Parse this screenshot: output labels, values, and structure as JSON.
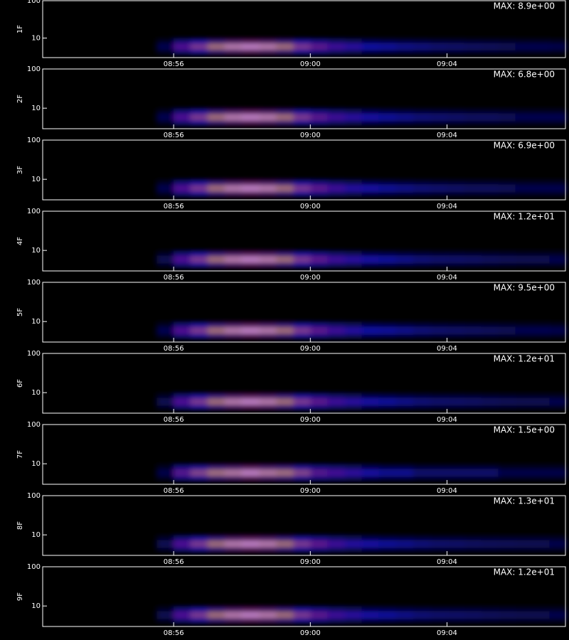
{
  "chart_data": [
    {
      "type": "heatmap",
      "ylabel": "1F",
      "annotation": "MAX: 8.9e+00",
      "log_y": true,
      "ylim": [
        3,
        100
      ],
      "yticks": [
        10,
        100
      ],
      "xlim": [
        "08:52:10",
        "09:07:28"
      ],
      "xticks": [
        "08:56",
        "09:00",
        "09:04"
      ],
      "x": [
        "08:55:30",
        "08:56:00",
        "08:56:30",
        "08:57:00",
        "08:57:30",
        "08:58:00",
        "08:58:30",
        "08:59:00",
        "08:59:30",
        "09:00:00",
        "09:00:30",
        "09:01:00",
        "09:01:30",
        "09:02:00",
        "09:02:30",
        "09:03:00",
        "09:03:30",
        "09:04:00",
        "09:04:30",
        "09:05:00",
        "09:05:30",
        "09:06:00",
        "09:06:30",
        "09:07:00"
      ],
      "values": [
        1.3,
        4.5,
        6.2,
        7.6,
        8.5,
        8.9,
        8.5,
        7.6,
        6.2,
        4.9,
        4,
        3.4,
        2.8,
        2.5,
        2.2,
        2,
        1.8,
        1.7,
        1.6,
        1.5,
        1.4,
        1.3,
        1.3,
        1.2
      ]
    },
    {
      "type": "heatmap",
      "ylabel": "2F",
      "annotation": "MAX: 6.8e+00",
      "log_y": true,
      "ylim": [
        3,
        100
      ],
      "yticks": [
        10,
        100
      ],
      "xlim": [
        "08:52:10",
        "09:07:28"
      ],
      "xticks": [
        "08:56",
        "09:00",
        "09:04"
      ],
      "x": [
        "08:55:30",
        "08:56:00",
        "08:56:30",
        "08:57:00",
        "08:57:30",
        "08:58:00",
        "08:58:30",
        "08:59:00",
        "08:59:30",
        "09:00:00",
        "09:00:30",
        "09:01:00",
        "09:01:30",
        "09:02:00",
        "09:02:30",
        "09:03:00",
        "09:03:30",
        "09:04:00",
        "09:04:30",
        "09:05:00",
        "09:05:30",
        "09:06:00",
        "09:06:30",
        "09:07:00"
      ],
      "values": [
        1.0,
        3.4,
        4.8,
        5.8,
        6.5,
        6.8,
        6.5,
        5.8,
        4.8,
        3.7,
        3.1,
        2.6,
        2.2,
        1.9,
        1.7,
        1.5,
        1.4,
        1.3,
        1.2,
        1.2,
        1.1,
        1.0,
        1.0,
        1.0
      ]
    },
    {
      "type": "heatmap",
      "ylabel": "3F",
      "annotation": "MAX: 6.9e+00",
      "log_y": true,
      "ylim": [
        3,
        100
      ],
      "yticks": [
        10,
        100
      ],
      "xlim": [
        "08:52:10",
        "09:07:28"
      ],
      "xticks": [
        "08:56",
        "09:00",
        "09:04"
      ],
      "x": [
        "08:55:30",
        "08:56:00",
        "08:56:30",
        "08:57:00",
        "08:57:30",
        "08:58:00",
        "08:58:30",
        "08:59:00",
        "08:59:30",
        "09:00:00",
        "09:00:30",
        "09:01:00",
        "09:01:30",
        "09:02:00",
        "09:02:30",
        "09:03:00",
        "09:03:30",
        "09:04:00",
        "09:04:30",
        "09:05:00",
        "09:05:30",
        "09:06:00",
        "09:06:30",
        "09:07:00"
      ],
      "values": [
        1.0,
        3.5,
        4.8,
        5.9,
        6.6,
        6.9,
        6.6,
        5.9,
        4.8,
        3.8,
        3.1,
        2.6,
        2.2,
        1.9,
        1.7,
        1.5,
        1.4,
        1.3,
        1.2,
        1.2,
        1.1,
        1.0,
        1.0,
        1.0
      ]
    },
    {
      "type": "heatmap",
      "ylabel": "4F",
      "annotation": "MAX: 1.2e+01",
      "log_y": true,
      "ylim": [
        3,
        100
      ],
      "yticks": [
        10,
        100
      ],
      "xlim": [
        "08:52:10",
        "09:07:28"
      ],
      "xticks": [
        "08:56",
        "09:00",
        "09:04"
      ],
      "x": [
        "08:55:30",
        "08:56:00",
        "08:56:30",
        "08:57:00",
        "08:57:30",
        "08:58:00",
        "08:58:30",
        "08:59:00",
        "08:59:30",
        "09:00:00",
        "09:00:30",
        "09:01:00",
        "09:01:30",
        "09:02:00",
        "09:02:30",
        "09:03:00",
        "09:03:30",
        "09:04:00",
        "09:04:30",
        "09:05:00",
        "09:05:30",
        "09:06:00",
        "09:06:30",
        "09:07:00"
      ],
      "values": [
        1.8,
        6,
        8.4,
        10.2,
        11.4,
        12,
        11.4,
        10.2,
        8.4,
        6.6,
        5.4,
        4.6,
        3.8,
        3.4,
        3,
        2.6,
        2.4,
        2.3,
        2.2,
        2,
        1.9,
        1.8,
        1.8,
        1.7
      ]
    },
    {
      "type": "heatmap",
      "ylabel": "5F",
      "annotation": "MAX: 9.5e+00",
      "log_y": true,
      "ylim": [
        3,
        100
      ],
      "yticks": [
        10,
        100
      ],
      "xlim": [
        "08:52:10",
        "09:07:28"
      ],
      "xticks": [
        "08:56",
        "09:00",
        "09:04"
      ],
      "x": [
        "08:55:30",
        "08:56:00",
        "08:56:30",
        "08:57:00",
        "08:57:30",
        "08:58:00",
        "08:58:30",
        "08:59:00",
        "08:59:30",
        "09:00:00",
        "09:00:30",
        "09:01:00",
        "09:01:30",
        "09:02:00",
        "09:02:30",
        "09:03:00",
        "09:03:30",
        "09:04:00",
        "09:04:30",
        "09:05:00",
        "09:05:30",
        "09:06:00",
        "09:06:30",
        "09:07:00"
      ],
      "values": [
        1.4,
        4.8,
        6.7,
        8.1,
        9,
        9.5,
        9,
        8.1,
        6.7,
        5.2,
        4.3,
        3.6,
        3,
        2.7,
        2.4,
        2.1,
        1.9,
        1.8,
        1.7,
        1.6,
        1.5,
        1.4,
        1.4,
        1.3
      ]
    },
    {
      "type": "heatmap",
      "ylabel": "6F",
      "annotation": "MAX: 1.2e+01",
      "log_y": true,
      "ylim": [
        3,
        100
      ],
      "yticks": [
        10,
        100
      ],
      "xlim": [
        "08:52:10",
        "09:07:28"
      ],
      "xticks": [
        "08:56",
        "09:00",
        "09:04"
      ],
      "x": [
        "08:55:30",
        "08:56:00",
        "08:56:30",
        "08:57:00",
        "08:57:30",
        "08:58:00",
        "08:58:30",
        "08:59:00",
        "08:59:30",
        "09:00:00",
        "09:00:30",
        "09:01:00",
        "09:01:30",
        "09:02:00",
        "09:02:30",
        "09:03:00",
        "09:03:30",
        "09:04:00",
        "09:04:30",
        "09:05:00",
        "09:05:30",
        "09:06:00",
        "09:06:30",
        "09:07:00"
      ],
      "values": [
        1.8,
        6,
        8.4,
        10.2,
        11.4,
        12,
        11.4,
        10.2,
        8.4,
        6.6,
        5.4,
        4.6,
        3.8,
        3.4,
        3,
        2.6,
        2.4,
        2.3,
        2.2,
        2,
        1.9,
        1.8,
        1.8,
        1.7
      ]
    },
    {
      "type": "heatmap",
      "ylabel": "7F",
      "annotation": "MAX: 1.5e+00",
      "log_y": true,
      "ylim": [
        3,
        100
      ],
      "yticks": [
        10,
        100
      ],
      "xlim": [
        "08:52:10",
        "09:07:28"
      ],
      "xticks": [
        "08:56",
        "09:00",
        "09:04"
      ],
      "x": [
        "08:55:30",
        "08:56:00",
        "08:56:30",
        "08:57:00",
        "08:57:30",
        "08:58:00",
        "08:58:30",
        "08:59:00",
        "08:59:30",
        "09:00:00",
        "09:00:30",
        "09:01:00",
        "09:01:30",
        "09:02:00",
        "09:02:30",
        "09:03:00",
        "09:03:30",
        "09:04:00",
        "09:04:30",
        "09:05:00",
        "09:05:30",
        "09:06:00",
        "09:06:30",
        "09:07:00"
      ],
      "values": [
        0.2,
        0.8,
        1.1,
        1.3,
        1.4,
        1.5,
        1.4,
        1.3,
        1.1,
        0.8,
        0.7,
        0.6,
        0.5,
        0.4,
        0.4,
        0.3,
        0.3,
        0.3,
        0.3,
        0.3,
        0.2,
        0.2,
        0.2,
        0.2
      ]
    },
    {
      "type": "heatmap",
      "ylabel": "8F",
      "annotation": "MAX: 1.3e+01",
      "log_y": true,
      "ylim": [
        3,
        100
      ],
      "yticks": [
        10,
        100
      ],
      "xlim": [
        "08:52:10",
        "09:07:28"
      ],
      "xticks": [
        "08:56",
        "09:00",
        "09:04"
      ],
      "x": [
        "08:55:30",
        "08:56:00",
        "08:56:30",
        "08:57:00",
        "08:57:30",
        "08:58:00",
        "08:58:30",
        "08:59:00",
        "08:59:30",
        "09:00:00",
        "09:00:30",
        "09:01:00",
        "09:01:30",
        "09:02:00",
        "09:02:30",
        "09:03:00",
        "09:03:30",
        "09:04:00",
        "09:04:30",
        "09:05:00",
        "09:05:30",
        "09:06:00",
        "09:06:30",
        "09:07:00"
      ],
      "values": [
        2,
        6.5,
        9.1,
        11,
        12.4,
        13,
        12.4,
        11,
        9.1,
        7.2,
        5.9,
        4.9,
        4.2,
        3.6,
        3.3,
        2.9,
        2.6,
        2.5,
        2.3,
        2.2,
        2.1,
        2,
        2,
        1.8
      ]
    },
    {
      "type": "heatmap",
      "ylabel": "9F",
      "annotation": "MAX: 1.2e+01",
      "log_y": true,
      "ylim": [
        3,
        100
      ],
      "yticks": [
        10,
        100
      ],
      "xlim": [
        "08:52:10",
        "09:07:28"
      ],
      "xticks": [
        "08:56",
        "09:00",
        "09:04"
      ],
      "x": [
        "08:55:30",
        "08:56:00",
        "08:56:30",
        "08:57:00",
        "08:57:30",
        "08:58:00",
        "08:58:30",
        "08:59:00",
        "08:59:30",
        "09:00:00",
        "09:00:30",
        "09:01:00",
        "09:01:30",
        "09:02:00",
        "09:02:30",
        "09:03:00",
        "09:03:30",
        "09:04:00",
        "09:04:30",
        "09:05:00",
        "09:05:30",
        "09:06:00",
        "09:06:30",
        "09:07:00"
      ],
      "values": [
        1.8,
        6,
        8.4,
        10.2,
        11.4,
        12,
        11.4,
        10.2,
        8.4,
        6.6,
        5.4,
        4.6,
        3.8,
        3.4,
        3,
        2.6,
        2.4,
        2.3,
        2.2,
        2,
        1.9,
        1.8,
        1.8,
        1.7
      ]
    }
  ]
}
